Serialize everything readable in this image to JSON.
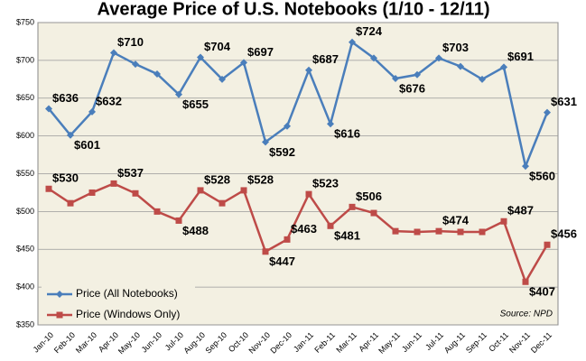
{
  "chart_data": {
    "type": "line",
    "title": "Average Price of U.S. Notebooks (1/10 - 12/11)",
    "categories": [
      "Jan-10",
      "Feb-10",
      "Mar-10",
      "Apr-10",
      "May-10",
      "Jun-10",
      "Jul-10",
      "Aug-10",
      "Sep-10",
      "Oct-10",
      "Nov-10",
      "Dec-10",
      "Jan-11",
      "Feb-11",
      "Mar-11",
      "Apr-11",
      "May-11",
      "Jun-11",
      "Jul-11",
      "Aug-11",
      "Sep-11",
      "Oct-11",
      "Nov-11",
      "Dec-11"
    ],
    "series": [
      {
        "name": "Price (All Notebooks)",
        "color": "#4a7ebb",
        "marker": "diamond",
        "values": [
          636,
          601,
          632,
          710,
          695,
          682,
          655,
          704,
          675,
          697,
          592,
          613,
          687,
          616,
          724,
          703,
          676,
          681,
          703,
          692,
          675,
          691,
          560,
          631
        ],
        "value_labels": [
          "$636",
          "$601",
          "$632",
          "$710",
          null,
          null,
          "$655",
          "$704",
          null,
          "$697",
          "$592",
          null,
          "$687",
          "$616",
          "$724",
          null,
          "$676",
          null,
          "$703",
          null,
          null,
          "$691",
          "$560",
          "$631"
        ]
      },
      {
        "name": "Price (Windows Only)",
        "color": "#be4b48",
        "marker": "square",
        "values": [
          530,
          511,
          525,
          537,
          524,
          500,
          488,
          528,
          511,
          528,
          447,
          463,
          523,
          481,
          506,
          498,
          474,
          473,
          474,
          473,
          473,
          487,
          407,
          456
        ],
        "value_labels": [
          "$530",
          null,
          null,
          "$537",
          null,
          null,
          "$488",
          "$528",
          null,
          "$528",
          "$447",
          "$463",
          "$523",
          "$481",
          "$506",
          null,
          null,
          null,
          "$474",
          null,
          null,
          "$487",
          "$407",
          "$456"
        ]
      }
    ],
    "ylim": [
      350,
      750
    ],
    "yticks": [
      {
        "value": 350,
        "label": "$350"
      },
      {
        "value": 400,
        "label": "$400"
      },
      {
        "value": 450,
        "label": "$450"
      },
      {
        "value": 500,
        "label": "$500"
      },
      {
        "value": 550,
        "label": "$550"
      },
      {
        "value": 600,
        "label": "$600"
      },
      {
        "value": 650,
        "label": "$650"
      },
      {
        "value": 700,
        "label": "$700"
      },
      {
        "value": 750,
        "label": "$750"
      }
    ],
    "grid": true,
    "legend": "lower-left",
    "note": "Source: NPD"
  }
}
